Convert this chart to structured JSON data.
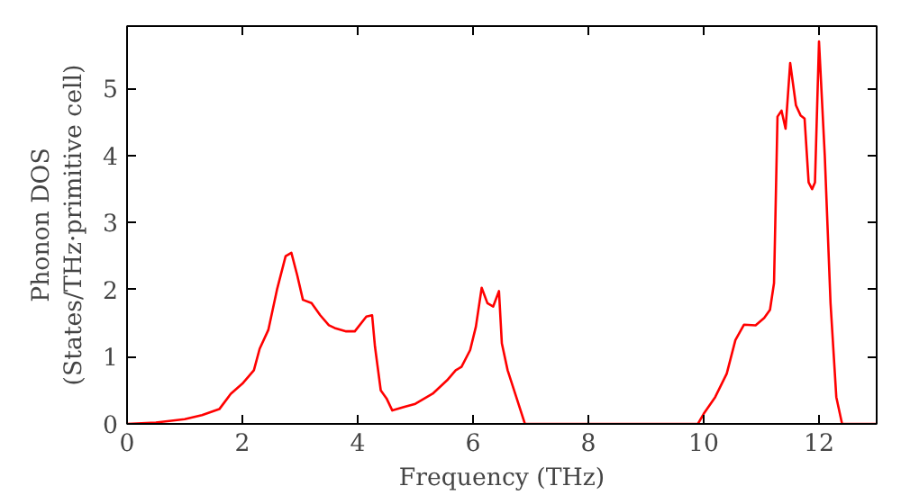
{
  "chart_data": {
    "type": "line",
    "xlabel": "Frequency (THz)",
    "ylabel": "Phonon DOS\n(States/THz·primitive cell)",
    "x": [
      0,
      0.5,
      1.0,
      1.3,
      1.6,
      1.8,
      2.0,
      2.2,
      2.3,
      2.45,
      2.6,
      2.75,
      2.85,
      2.95,
      3.05,
      3.2,
      3.35,
      3.5,
      3.6,
      3.8,
      3.95,
      4.15,
      4.25,
      4.3,
      4.4,
      4.5,
      4.6,
      4.8,
      5.0,
      5.3,
      5.55,
      5.7,
      5.8,
      5.95,
      6.05,
      6.15,
      6.25,
      6.35,
      6.45,
      6.5,
      6.6,
      6.75,
      6.9,
      7.0,
      9.9,
      10.0,
      10.2,
      10.4,
      10.55,
      10.7,
      10.9,
      11.05,
      11.15,
      11.22,
      11.28,
      11.35,
      11.42,
      11.5,
      11.6,
      11.68,
      11.75,
      11.82,
      11.88,
      11.93,
      12.0,
      12.1,
      12.2,
      12.3,
      12.4,
      12.5,
      13.0
    ],
    "values": [
      0,
      0.02,
      0.07,
      0.13,
      0.22,
      0.45,
      0.6,
      0.8,
      1.12,
      1.4,
      2.0,
      2.5,
      2.55,
      2.22,
      1.85,
      1.8,
      1.62,
      1.47,
      1.43,
      1.38,
      1.38,
      1.6,
      1.62,
      1.15,
      0.5,
      0.38,
      0.2,
      0.25,
      0.3,
      0.45,
      0.65,
      0.8,
      0.85,
      1.1,
      1.45,
      2.03,
      1.8,
      1.75,
      1.98,
      1.2,
      0.8,
      0.4,
      0,
      0,
      0,
      0.15,
      0.4,
      0.75,
      1.25,
      1.48,
      1.47,
      1.58,
      1.7,
      2.1,
      4.58,
      4.67,
      4.4,
      5.38,
      4.75,
      4.6,
      4.55,
      3.6,
      3.5,
      3.6,
      5.7,
      4.0,
      1.8,
      0.4,
      0,
      0,
      0
    ],
    "color": "#ff0000",
    "xlim": [
      0,
      13
    ],
    "ylim": [
      0,
      5.93
    ],
    "xticks": [
      0,
      2,
      4,
      6,
      8,
      10,
      12
    ],
    "yticks": [
      0,
      1,
      2,
      3,
      4,
      5
    ],
    "grid": false
  }
}
